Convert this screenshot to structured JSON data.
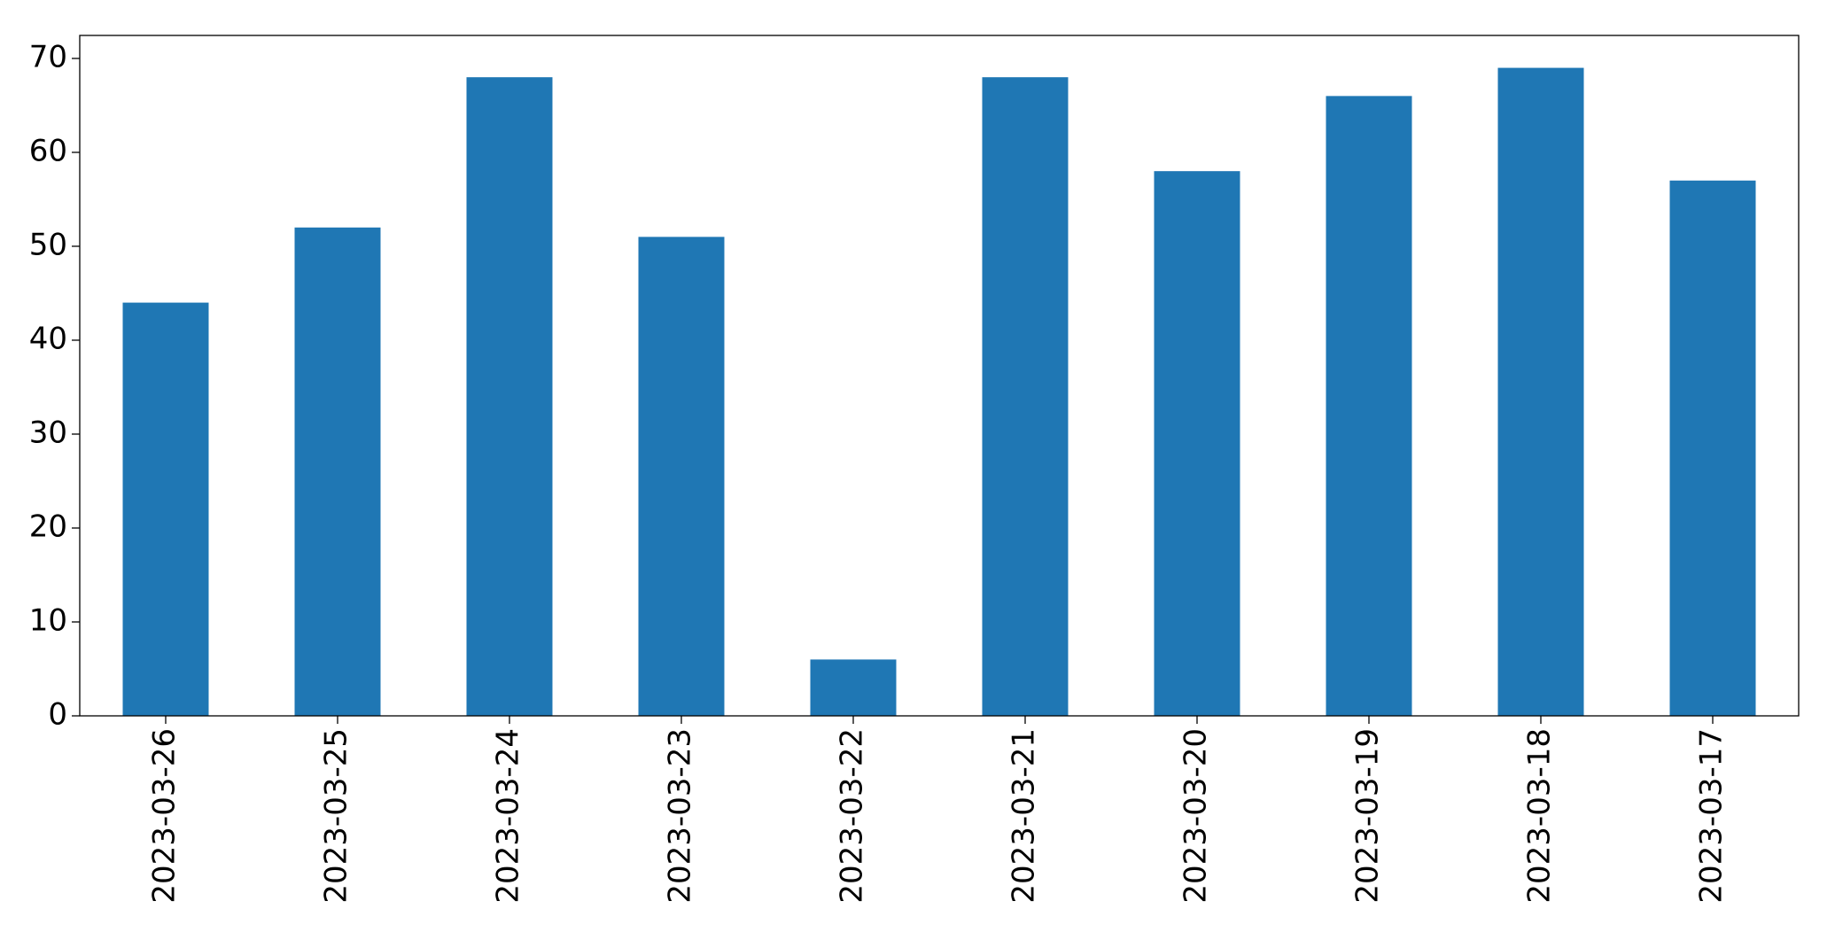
{
  "chart_data": {
    "type": "bar",
    "categories": [
      "2023-03-26",
      "2023-03-25",
      "2023-03-24",
      "2023-03-23",
      "2023-03-22",
      "2023-03-21",
      "2023-03-20",
      "2023-03-19",
      "2023-03-18",
      "2023-03-17"
    ],
    "values": [
      44,
      52,
      68,
      51,
      6,
      68,
      58,
      66,
      69,
      57
    ],
    "color": "#1f77b4",
    "ylim": [
      0,
      72.45
    ],
    "yticks": [
      0,
      10,
      20,
      30,
      40,
      50,
      60,
      70
    ],
    "grid": false
  }
}
